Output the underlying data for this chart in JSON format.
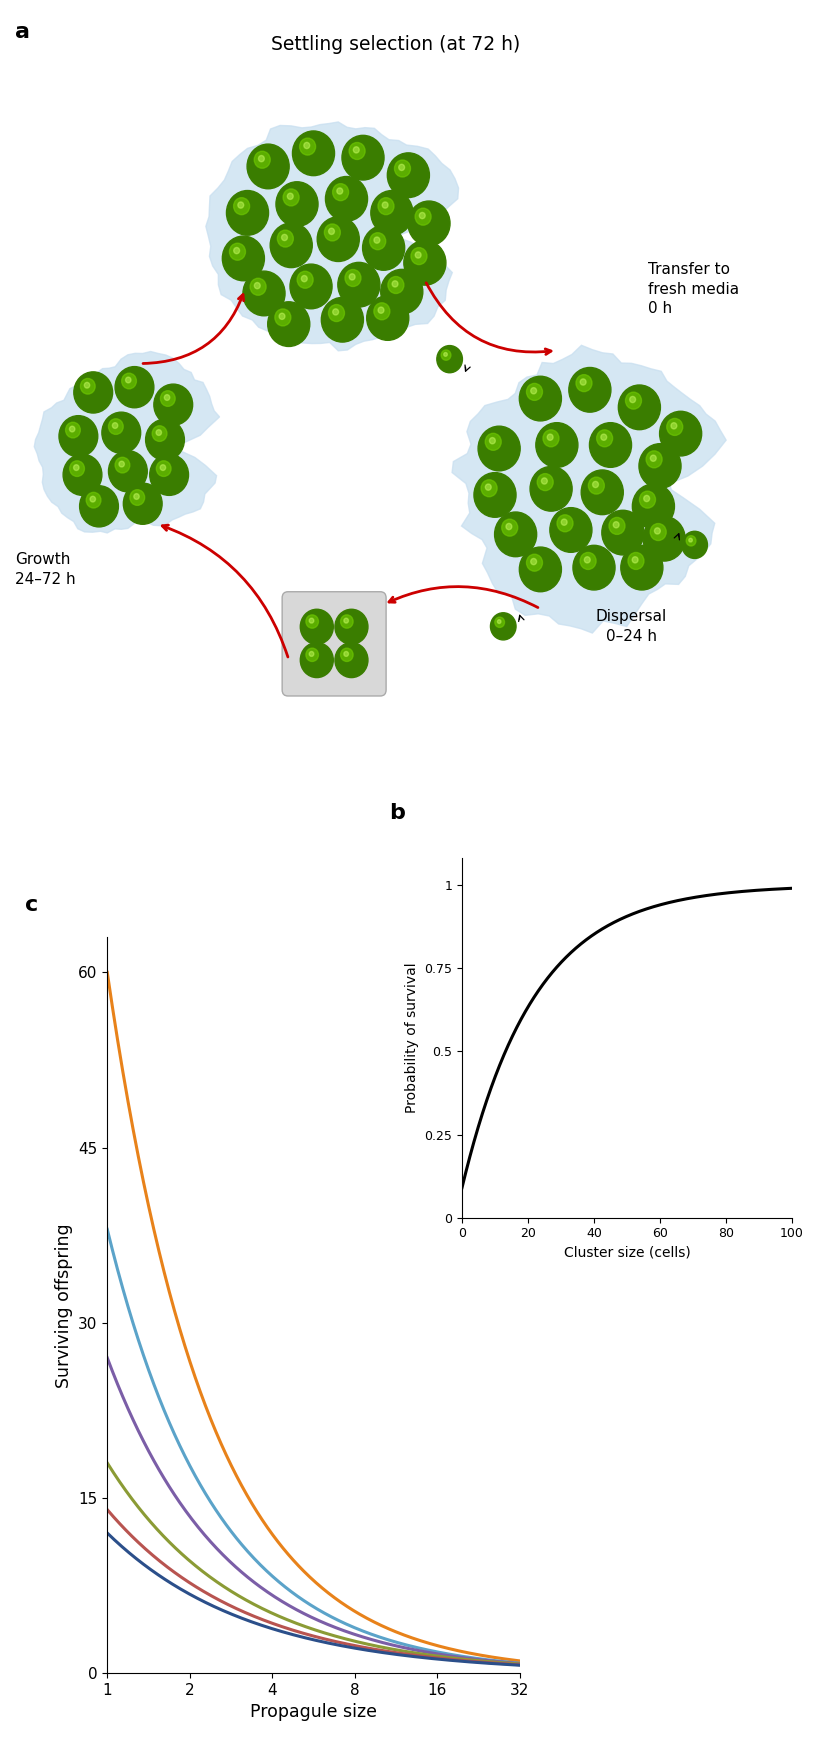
{
  "title_a": "Settling selection (at 72 h)",
  "label_transfer": "Transfer to\nfresh media\n0 h",
  "label_growth": "Growth\n24–72 h",
  "label_dispersal": "Dispersal\n0–24 h",
  "panel_a_label": "a",
  "panel_b_label": "b",
  "panel_c_label": "c",
  "xlabel_c": "Propagule size",
  "ylabel_c": "Surviving offspring",
  "xlabel_b": "Cluster size (cells)",
  "ylabel_b": "Probability of survival",
  "yticks_c": [
    0,
    15,
    30,
    45,
    60
  ],
  "xticks_c_labels": [
    "1",
    "2",
    "4",
    "8",
    "16",
    "32"
  ],
  "xticks_c_vals": [
    1,
    2,
    4,
    8,
    16,
    32
  ],
  "yticks_b": [
    0,
    0.25,
    0.5,
    0.75,
    1
  ],
  "xticks_b": [
    0,
    20,
    40,
    60,
    80,
    100
  ],
  "line_colors_c": [
    "#E8821A",
    "#5BA3C9",
    "#7B5EA7",
    "#8B9B35",
    "#B85450",
    "#2B4F8A"
  ],
  "line_start_vals": [
    60,
    38,
    27,
    18,
    14,
    12
  ],
  "line_end_vals": [
    1.05,
    0.85,
    0.82,
    0.78,
    0.72,
    0.68
  ],
  "ball_color_dark": "#3A7D00",
  "ball_color_light": "#6EC800",
  "ball_shadow": "#1a4d00",
  "blob_color": "#C8DFF0",
  "arrow_color": "#CC0000",
  "bg_color": "#FFFFFF",
  "dispersal_arrow_color": "#000000",
  "box_color": "#D8D8D8",
  "box_edge_color": "#AAAAAA"
}
